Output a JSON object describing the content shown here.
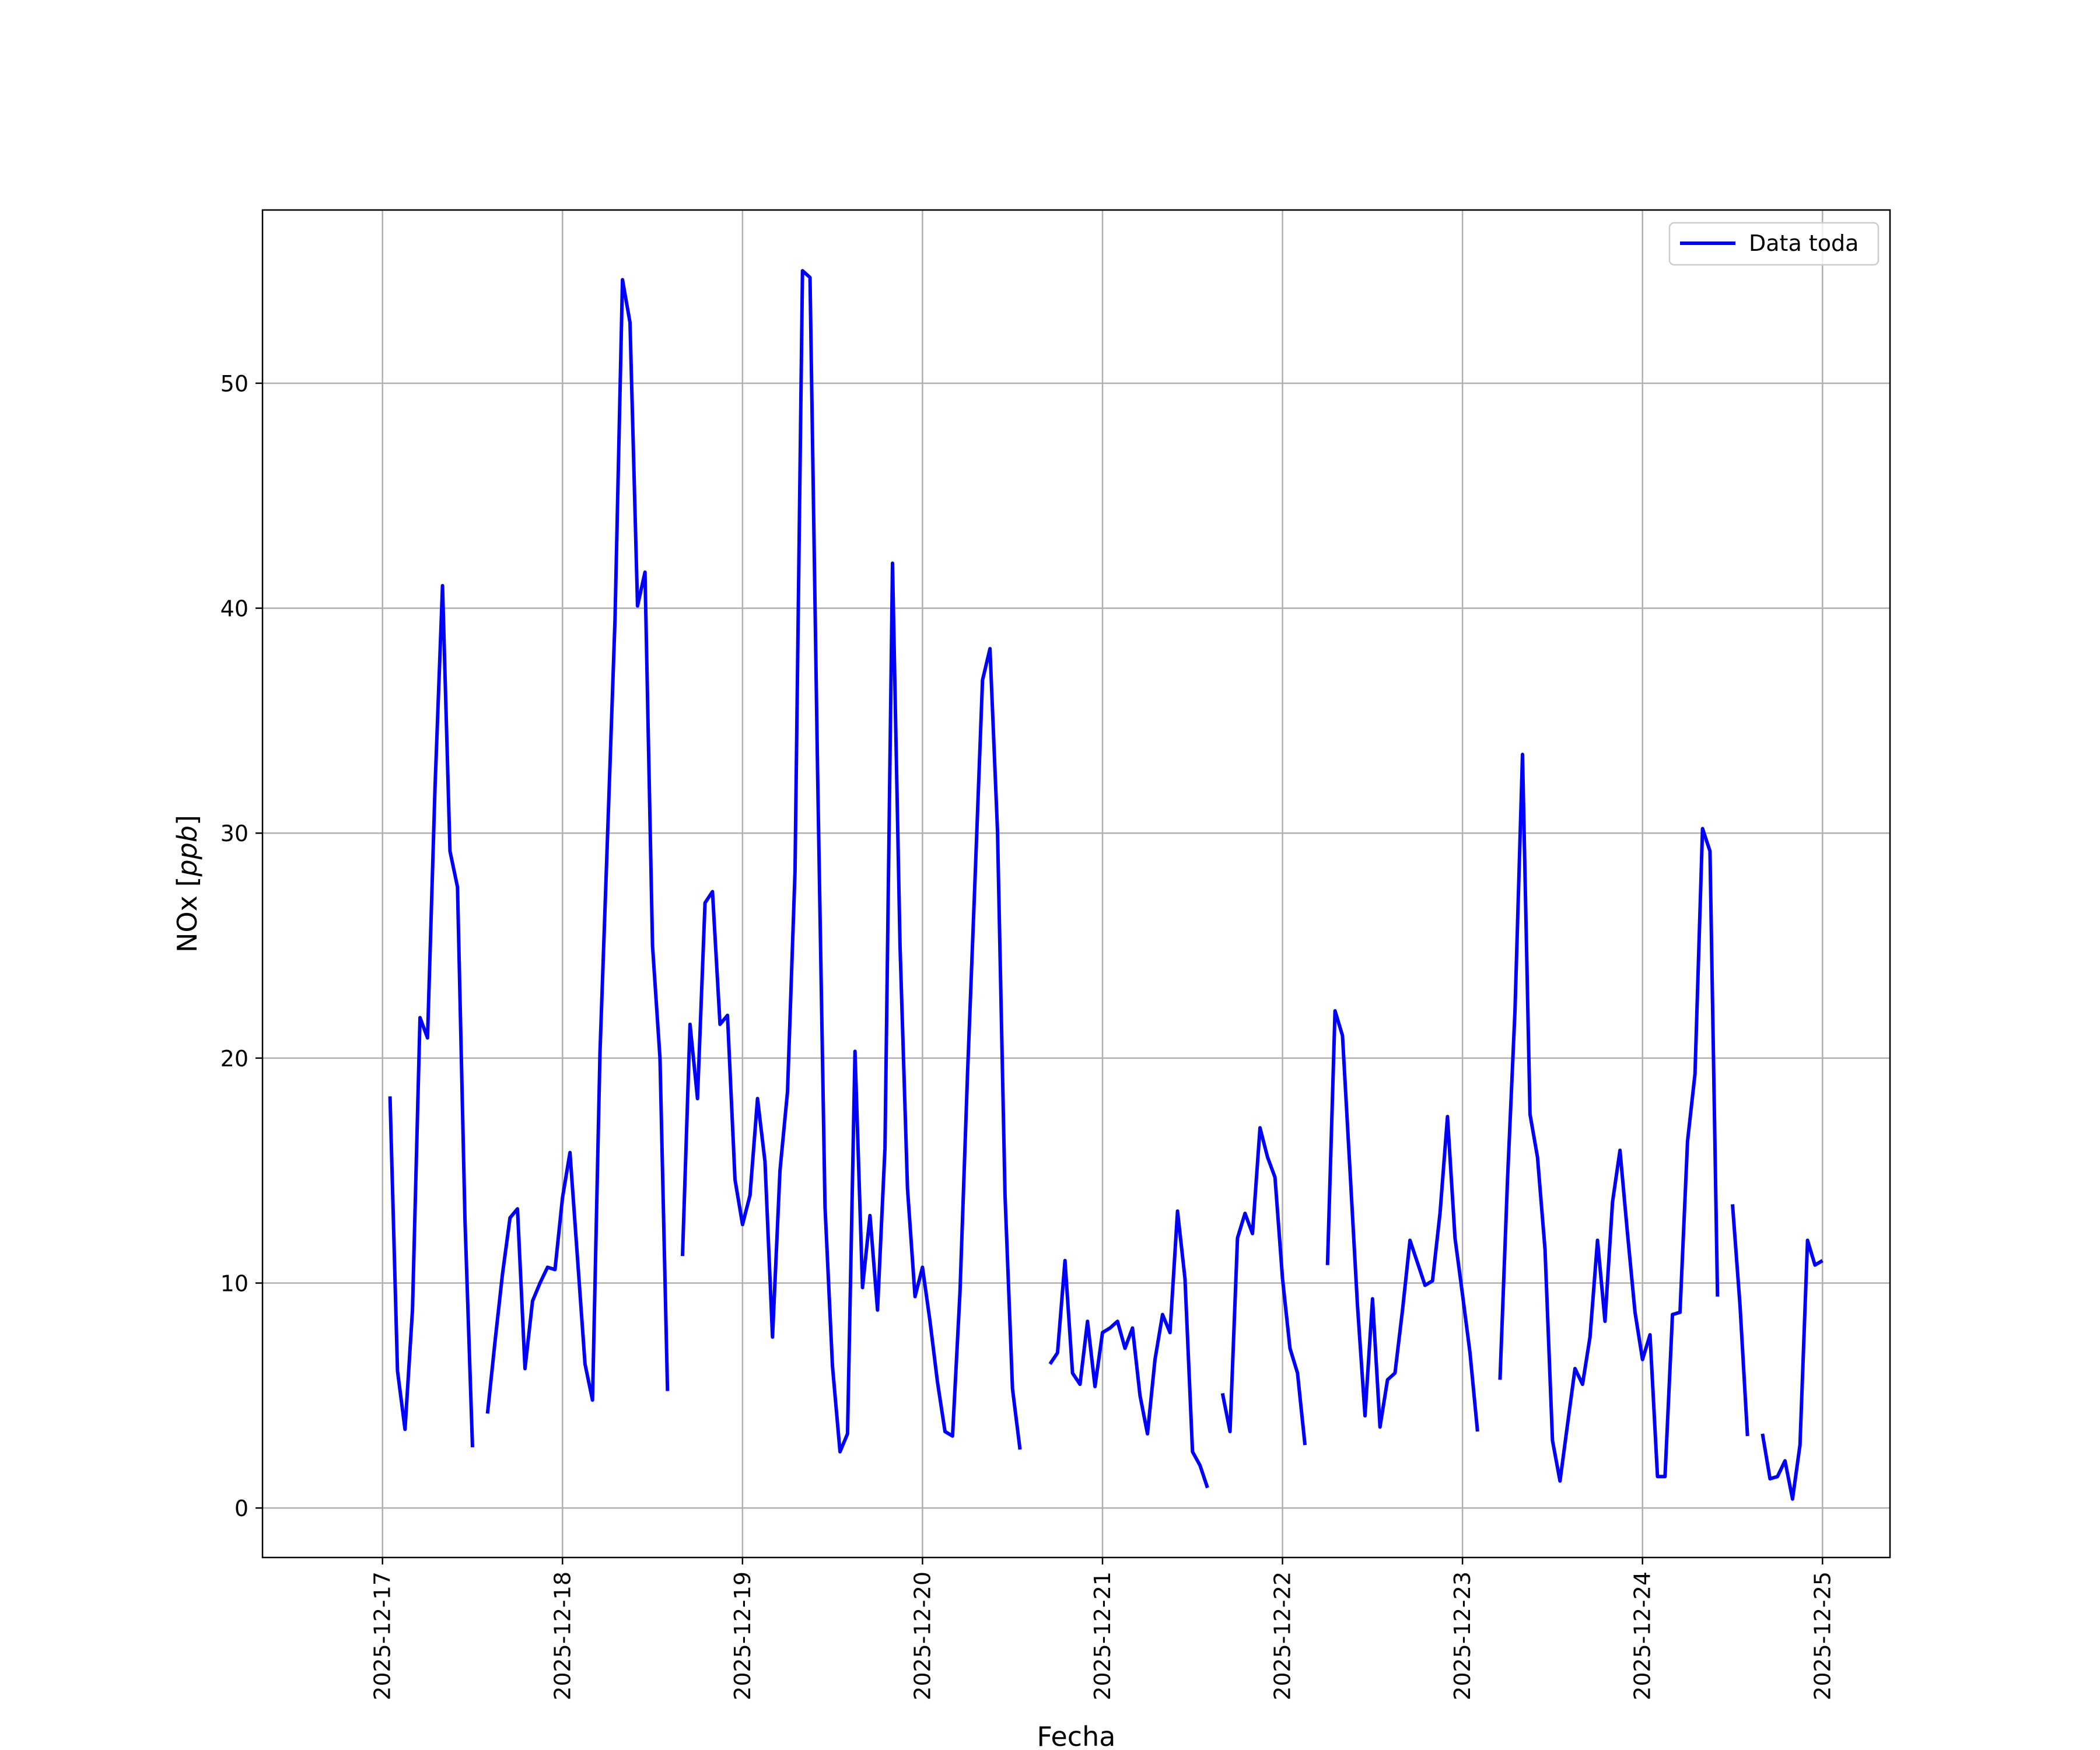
{
  "chart_data": {
    "type": "line",
    "xlabel": "Fecha",
    "ylabel_text": "NOx ",
    "ylabel_unit": "ppb",
    "x_ticks": [
      "2025-12-17",
      "2025-12-18",
      "2025-12-19",
      "2025-12-20",
      "2025-12-21",
      "2025-12-22",
      "2025-12-23",
      "2025-12-24",
      "2025-12-25"
    ],
    "y_ticks": [
      "0",
      "10",
      "20",
      "30",
      "40",
      "50"
    ],
    "xlim": [
      "2025-12-16T08:00",
      "2025-12-25T09:00"
    ],
    "ylim": [
      -2.2,
      57.7
    ],
    "grid": true,
    "legend_position": "top-right",
    "colors": {
      "series": "#0000ff",
      "grid": "#b0b0b0",
      "frame": "#000000"
    },
    "series": [
      {
        "name": "Data toda",
        "segments": [
          [
            [
              "2025-12-17T01:00",
              18.3
            ],
            [
              "2025-12-17T02:00",
              6.1
            ],
            [
              "2025-12-17T03:00",
              3.5
            ],
            [
              "2025-12-17T04:00",
              8.8
            ],
            [
              "2025-12-17T05:00",
              21.8
            ],
            [
              "2025-12-17T06:00",
              20.9
            ],
            [
              "2025-12-17T07:00",
              32.0
            ],
            [
              "2025-12-17T08:00",
              41.0
            ],
            [
              "2025-12-17T09:00",
              29.2
            ],
            [
              "2025-12-17T10:00",
              27.6
            ],
            [
              "2025-12-17T11:00",
              12.8
            ],
            [
              "2025-12-17T12:00",
              2.7
            ]
          ],
          [
            [
              "2025-12-17T14:00",
              4.2
            ],
            [
              "2025-12-17T15:00",
              7.4
            ],
            [
              "2025-12-17T16:00",
              10.4
            ],
            [
              "2025-12-17T17:00",
              12.9
            ],
            [
              "2025-12-17T18:00",
              13.3
            ],
            [
              "2025-12-17T19:00",
              6.2
            ],
            [
              "2025-12-17T20:00",
              9.2
            ],
            [
              "2025-12-17T21:00",
              10.0
            ],
            [
              "2025-12-17T22:00",
              10.7
            ],
            [
              "2025-12-17T23:00",
              10.6
            ],
            [
              "2025-12-18T00:00",
              13.8
            ],
            [
              "2025-12-18T01:00",
              15.8
            ],
            [
              "2025-12-18T02:00",
              11.1
            ],
            [
              "2025-12-18T03:00",
              6.4
            ],
            [
              "2025-12-18T04:00",
              4.8
            ],
            [
              "2025-12-18T05:00",
              20.3
            ],
            [
              "2025-12-18T06:00",
              29.8
            ],
            [
              "2025-12-18T07:00",
              39.5
            ],
            [
              "2025-12-18T08:00",
              54.6
            ],
            [
              "2025-12-18T09:00",
              52.7
            ],
            [
              "2025-12-18T10:00",
              40.1
            ],
            [
              "2025-12-18T11:00",
              41.6
            ],
            [
              "2025-12-18T12:00",
              25.0
            ],
            [
              "2025-12-18T13:00",
              20.0
            ],
            [
              "2025-12-18T14:00",
              5.2
            ]
          ],
          [
            [
              "2025-12-18T16:00",
              11.2
            ],
            [
              "2025-12-18T17:00",
              21.5
            ],
            [
              "2025-12-18T18:00",
              18.2
            ],
            [
              "2025-12-18T19:00",
              26.9
            ],
            [
              "2025-12-18T20:00",
              27.4
            ],
            [
              "2025-12-18T21:00",
              21.5
            ],
            [
              "2025-12-18T22:00",
              21.9
            ],
            [
              "2025-12-18T23:00",
              14.6
            ],
            [
              "2025-12-19T00:00",
              12.6
            ],
            [
              "2025-12-19T01:00",
              13.9
            ],
            [
              "2025-12-19T02:00",
              18.2
            ],
            [
              "2025-12-19T03:00",
              15.4
            ],
            [
              "2025-12-19T04:00",
              7.6
            ],
            [
              "2025-12-19T05:00",
              15.0
            ],
            [
              "2025-12-19T06:00",
              18.5
            ],
            [
              "2025-12-19T07:00",
              28.3
            ],
            [
              "2025-12-19T08:00",
              55.0
            ],
            [
              "2025-12-19T09:00",
              54.7
            ],
            [
              "2025-12-19T10:00",
              33.0
            ],
            [
              "2025-12-19T11:00",
              13.4
            ],
            [
              "2025-12-19T12:00",
              6.3
            ],
            [
              "2025-12-19T13:00",
              2.5
            ],
            [
              "2025-12-19T14:00",
              3.3
            ],
            [
              "2025-12-19T15:00",
              20.3
            ],
            [
              "2025-12-19T16:00",
              9.8
            ],
            [
              "2025-12-19T17:00",
              13.0
            ],
            [
              "2025-12-19T18:00",
              8.8
            ],
            [
              "2025-12-19T19:00",
              16.0
            ],
            [
              "2025-12-19T20:00",
              42.0
            ],
            [
              "2025-12-19T21:00",
              25.0
            ],
            [
              "2025-12-19T22:00",
              14.2
            ],
            [
              "2025-12-19T23:00",
              9.4
            ],
            [
              "2025-12-20T00:00",
              10.7
            ],
            [
              "2025-12-20T01:00",
              8.3
            ],
            [
              "2025-12-20T02:00",
              5.6
            ],
            [
              "2025-12-20T03:00",
              3.4
            ],
            [
              "2025-12-20T04:00",
              3.2
            ],
            [
              "2025-12-20T05:00",
              9.6
            ],
            [
              "2025-12-20T06:00",
              19.3
            ],
            [
              "2025-12-20T07:00",
              27.9
            ],
            [
              "2025-12-20T08:00",
              36.8
            ],
            [
              "2025-12-20T09:00",
              38.2
            ],
            [
              "2025-12-20T10:00",
              30.1
            ],
            [
              "2025-12-20T11:00",
              13.9
            ],
            [
              "2025-12-20T12:00",
              5.3
            ],
            [
              "2025-12-20T13:00",
              2.6
            ]
          ],
          [
            [
              "2025-12-20T17:00",
              6.4
            ],
            [
              "2025-12-20T18:00",
              6.9
            ],
            [
              "2025-12-20T19:00",
              11.0
            ],
            [
              "2025-12-20T20:00",
              6.0
            ],
            [
              "2025-12-20T21:00",
              5.5
            ],
            [
              "2025-12-20T22:00",
              8.3
            ],
            [
              "2025-12-20T23:00",
              5.4
            ],
            [
              "2025-12-21T00:00",
              7.8
            ],
            [
              "2025-12-21T01:00",
              8.0
            ],
            [
              "2025-12-21T02:00",
              8.3
            ],
            [
              "2025-12-21T03:00",
              7.1
            ],
            [
              "2025-12-21T04:00",
              8.0
            ],
            [
              "2025-12-21T05:00",
              5.0
            ],
            [
              "2025-12-21T06:00",
              3.3
            ],
            [
              "2025-12-21T07:00",
              6.6
            ],
            [
              "2025-12-21T08:00",
              8.6
            ],
            [
              "2025-12-21T09:00",
              7.8
            ],
            [
              "2025-12-21T10:00",
              13.2
            ],
            [
              "2025-12-21T11:00",
              10.2
            ],
            [
              "2025-12-21T12:00",
              2.5
            ],
            [
              "2025-12-21T13:00",
              1.9
            ],
            [
              "2025-12-21T14:00",
              0.9
            ]
          ],
          [
            [
              "2025-12-21T16:00",
              5.1
            ],
            [
              "2025-12-21T17:00",
              3.4
            ],
            [
              "2025-12-21T18:00",
              12.0
            ],
            [
              "2025-12-21T19:00",
              13.1
            ],
            [
              "2025-12-21T20:00",
              12.2
            ],
            [
              "2025-12-21T21:00",
              16.9
            ],
            [
              "2025-12-21T22:00",
              15.6
            ],
            [
              "2025-12-21T23:00",
              14.7
            ],
            [
              "2025-12-22T00:00",
              10.2
            ],
            [
              "2025-12-22T01:00",
              7.1
            ],
            [
              "2025-12-22T02:00",
              6.0
            ],
            [
              "2025-12-22T03:00",
              2.8
            ]
          ],
          [
            [
              "2025-12-22T06:00",
              10.8
            ],
            [
              "2025-12-22T07:00",
              22.1
            ],
            [
              "2025-12-22T08:00",
              21.0
            ],
            [
              "2025-12-22T09:00",
              15.0
            ],
            [
              "2025-12-22T10:00",
              9.0
            ],
            [
              "2025-12-22T11:00",
              4.1
            ],
            [
              "2025-12-22T12:00",
              9.3
            ],
            [
              "2025-12-22T13:00",
              3.6
            ],
            [
              "2025-12-22T14:00",
              5.7
            ],
            [
              "2025-12-22T15:00",
              6.0
            ],
            [
              "2025-12-22T16:00",
              8.8
            ],
            [
              "2025-12-22T17:00",
              11.9
            ],
            [
              "2025-12-22T18:00",
              10.9
            ],
            [
              "2025-12-22T19:00",
              9.9
            ],
            [
              "2025-12-22T20:00",
              10.1
            ],
            [
              "2025-12-22T21:00",
              13.1
            ],
            [
              "2025-12-22T22:00",
              17.4
            ],
            [
              "2025-12-22T23:00",
              12.0
            ],
            [
              "2025-12-23T00:00",
              9.5
            ],
            [
              "2025-12-23T01:00",
              6.9
            ],
            [
              "2025-12-23T02:00",
              3.4
            ]
          ],
          [
            [
              "2025-12-23T05:00",
              5.7
            ],
            [
              "2025-12-23T06:00",
              14.6
            ],
            [
              "2025-12-23T07:00",
              22.1
            ],
            [
              "2025-12-23T08:00",
              33.5
            ],
            [
              "2025-12-23T09:00",
              17.5
            ],
            [
              "2025-12-23T10:00",
              15.6
            ],
            [
              "2025-12-23T11:00",
              11.5
            ],
            [
              "2025-12-23T12:00",
              3.0
            ],
            [
              "2025-12-23T13:00",
              1.2
            ],
            [
              "2025-12-23T14:00",
              3.7
            ],
            [
              "2025-12-23T15:00",
              6.2
            ],
            [
              "2025-12-23T16:00",
              5.5
            ],
            [
              "2025-12-23T17:00",
              7.6
            ],
            [
              "2025-12-23T18:00",
              11.9
            ],
            [
              "2025-12-23T19:00",
              8.3
            ],
            [
              "2025-12-23T20:00",
              13.6
            ],
            [
              "2025-12-23T21:00",
              15.9
            ],
            [
              "2025-12-23T22:00",
              12.2
            ],
            [
              "2025-12-23T23:00",
              8.7
            ],
            [
              "2025-12-24T00:00",
              6.6
            ],
            [
              "2025-12-24T01:00",
              7.7
            ],
            [
              "2025-12-24T02:00",
              1.4
            ],
            [
              "2025-12-24T03:00",
              1.4
            ],
            [
              "2025-12-24T04:00",
              8.6
            ],
            [
              "2025-12-24T05:00",
              8.7
            ],
            [
              "2025-12-24T06:00",
              16.3
            ],
            [
              "2025-12-24T07:00",
              19.3
            ],
            [
              "2025-12-24T08:00",
              30.2
            ],
            [
              "2025-12-24T09:00",
              29.2
            ],
            [
              "2025-12-24T10:00",
              9.4
            ]
          ],
          [
            [
              "2025-12-24T12:00",
              13.5
            ],
            [
              "2025-12-24T13:00",
              9.0
            ],
            [
              "2025-12-24T14:00",
              3.2
            ]
          ],
          [
            [
              "2025-12-24T16:00",
              3.3
            ],
            [
              "2025-12-24T17:00",
              1.3
            ],
            [
              "2025-12-24T18:00",
              1.4
            ],
            [
              "2025-12-24T19:00",
              2.1
            ],
            [
              "2025-12-24T20:00",
              0.4
            ],
            [
              "2025-12-24T21:00",
              2.8
            ],
            [
              "2025-12-24T22:00",
              11.9
            ],
            [
              "2025-12-24T23:00",
              10.8
            ],
            [
              "2025-12-25T00:00",
              11.0
            ]
          ]
        ]
      }
    ]
  }
}
